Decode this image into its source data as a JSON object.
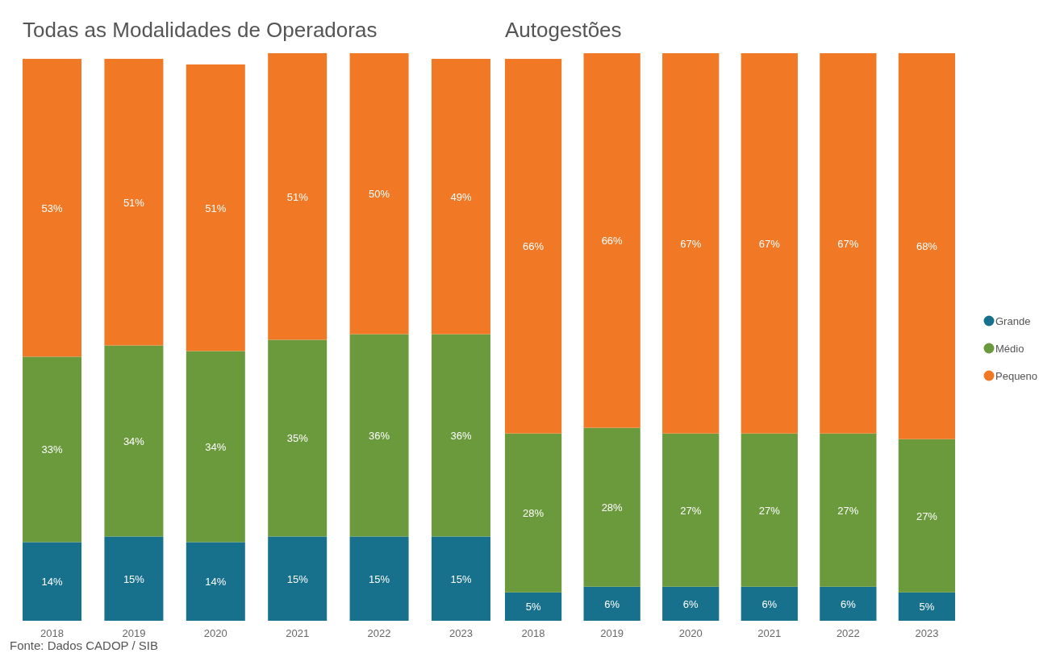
{
  "chart_data": [
    {
      "type": "bar",
      "title": "Todas as Modalidades de Operadoras",
      "categories": [
        "2018",
        "2019",
        "2020",
        "2021",
        "2022",
        "2023"
      ],
      "stacked": true,
      "legend": false,
      "annotations": [
        "Fonte: Dados CADOP / SIB"
      ],
      "series": [
        {
          "color": "#17708c",
          "values": [
            14,
            15,
            14,
            15,
            15,
            15
          ],
          "value_labels": [
            "14%",
            "15%",
            "14%",
            "15%",
            "15%",
            "15%"
          ]
        },
        {
          "color": "#6b9a3d",
          "values": [
            33,
            34,
            34,
            35,
            36,
            36
          ],
          "value_labels": [
            "33%",
            "34%",
            "34%",
            "35%",
            "36%",
            "36%"
          ]
        },
        {
          "color": "#f17824",
          "values": [
            53,
            51,
            51,
            51,
            50,
            49
          ],
          "value_labels": [
            "53%",
            "51%",
            "51%",
            "51%",
            "50%",
            "49%"
          ]
        }
      ]
    },
    {
      "type": "bar",
      "title": "Autogestões",
      "categories": [
        "2018",
        "2019",
        "2020",
        "2021",
        "2022",
        "2023"
      ],
      "stacked": true,
      "legend": "right",
      "series": [
        {
          "name": "Grande",
          "color": "#17708c",
          "values": [
            5,
            6,
            6,
            6,
            6,
            5
          ],
          "value_labels": [
            "5%",
            "6%",
            "6%",
            "6%",
            "6%",
            "5%"
          ]
        },
        {
          "name": "Médio",
          "color": "#6b9a3d",
          "values": [
            28,
            28,
            27,
            27,
            27,
            27
          ],
          "value_labels": [
            "28%",
            "28%",
            "27%",
            "27%",
            "27%",
            "27%"
          ]
        },
        {
          "name": "Pequeno",
          "color": "#f17824",
          "values": [
            66,
            66,
            67,
            67,
            67,
            68
          ],
          "value_labels": [
            "66%",
            "66%",
            "67%",
            "67%",
            "67%",
            "68%"
          ]
        }
      ]
    }
  ]
}
